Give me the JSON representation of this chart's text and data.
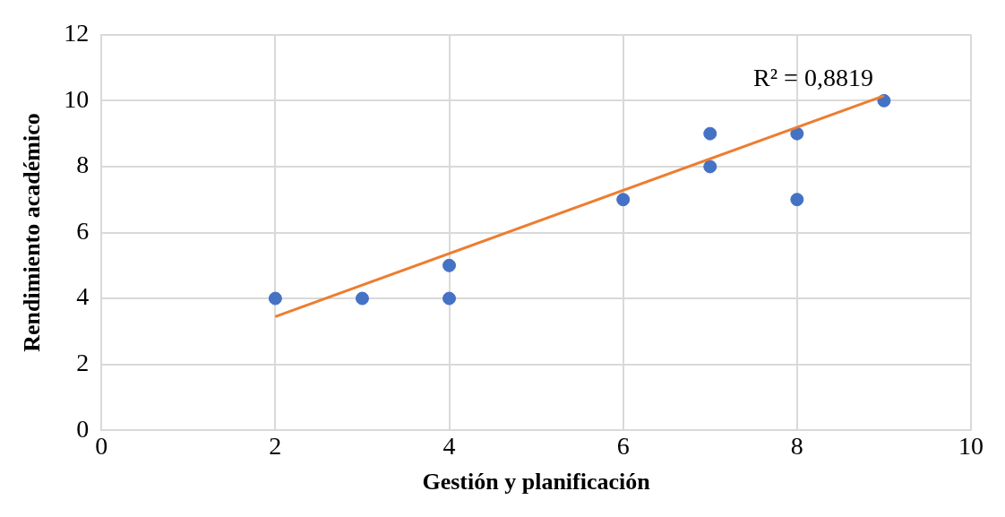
{
  "chart_data": {
    "type": "scatter",
    "xlabel": "Gestión y planificación",
    "ylabel": "Rendimiento académico",
    "xlim": [
      0,
      10
    ],
    "xticks": [
      0,
      2,
      4,
      6,
      8,
      10
    ],
    "ylim": [
      0,
      12
    ],
    "yticks": [
      0,
      2,
      4,
      6,
      8,
      10,
      12
    ],
    "grid": true,
    "legend": false,
    "marker": "circle",
    "series": [
      {
        "color": "#4472c4",
        "x": [
          2,
          3,
          4,
          4,
          6,
          7,
          7,
          8,
          8,
          9
        ],
        "values": [
          4,
          4,
          5,
          4,
          7,
          9,
          8,
          9,
          7,
          10
        ]
      },
      {
        "type": "line",
        "color": "#ed7d31",
        "line_style": "solid",
        "marker": "none",
        "x": [
          2,
          9
        ],
        "values": [
          3.45,
          10.15
        ]
      }
    ],
    "annotations": [
      "R² = 0,8819"
    ]
  }
}
